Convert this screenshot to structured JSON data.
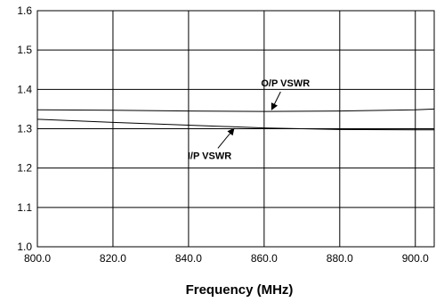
{
  "chart_data": {
    "type": "line",
    "title": "",
    "xlabel": "Frequency (MHz)",
    "ylabel": "",
    "xlim": [
      800,
      905
    ],
    "ylim": [
      1.0,
      1.6
    ],
    "grid": true,
    "x_ticks": [
      800,
      820,
      840,
      860,
      880,
      900
    ],
    "x_tick_labels": [
      "800.0",
      "820.0",
      "840.0",
      "860.0",
      "880.0",
      "900.0"
    ],
    "y_ticks": [
      1.0,
      1.1,
      1.2,
      1.3,
      1.4,
      1.5,
      1.6
    ],
    "y_tick_labels": [
      "1.0",
      "1.1",
      "1.2",
      "1.3",
      "1.4",
      "1.5",
      "1.6"
    ],
    "x": [
      800,
      820,
      840,
      860,
      880,
      900,
      905
    ],
    "series": [
      {
        "name": "O/P VSWR",
        "values": [
          1.348,
          1.347,
          1.345,
          1.344,
          1.345,
          1.348,
          1.35
        ]
      },
      {
        "name": "I/P VSWR",
        "values": [
          1.324,
          1.316,
          1.309,
          1.302,
          1.298,
          1.297,
          1.297
        ]
      }
    ],
    "annotations": [
      {
        "text": "O/P VSWR",
        "series": "O/P VSWR",
        "arrow_to_x": 862
      },
      {
        "text": "I/P VSWR",
        "series": "I/P VSWR",
        "arrow_to_x": 852
      }
    ]
  }
}
